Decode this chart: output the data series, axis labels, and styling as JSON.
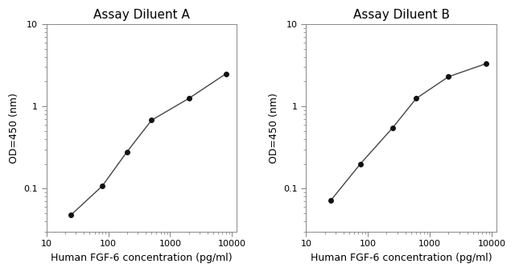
{
  "panel_A": {
    "title": "Assay Diluent A",
    "x": [
      25,
      80,
      200,
      500,
      2000,
      8000
    ],
    "y": [
      0.048,
      0.108,
      0.28,
      0.68,
      1.25,
      2.5
    ],
    "xlim": [
      15,
      12000
    ],
    "ylim": [
      0.03,
      10
    ]
  },
  "panel_B": {
    "title": "Assay Diluent B",
    "x": [
      25,
      75,
      250,
      600,
      2000,
      8000
    ],
    "y": [
      0.072,
      0.2,
      0.55,
      1.25,
      2.3,
      3.3
    ],
    "xlim": [
      15,
      12000
    ],
    "ylim": [
      0.03,
      10
    ]
  },
  "xlabel": "Human FGF-6 concentration (pg/ml)",
  "ylabel": "OD=450 (nm)",
  "line_color": "#444444",
  "marker": "o",
  "markersize": 4,
  "markerfacecolor": "#111111",
  "linewidth": 1.0,
  "background_color": "#ffffff",
  "title_fontsize": 11,
  "label_fontsize": 9,
  "tick_fontsize": 8,
  "yticks": [
    0.1,
    1.0,
    10.0
  ],
  "ytick_labels": [
    "0.1",
    "1",
    "10"
  ],
  "xticks": [
    10,
    100,
    1000,
    10000
  ],
  "xtick_labels": [
    "10",
    "100",
    "1000",
    "10000"
  ]
}
